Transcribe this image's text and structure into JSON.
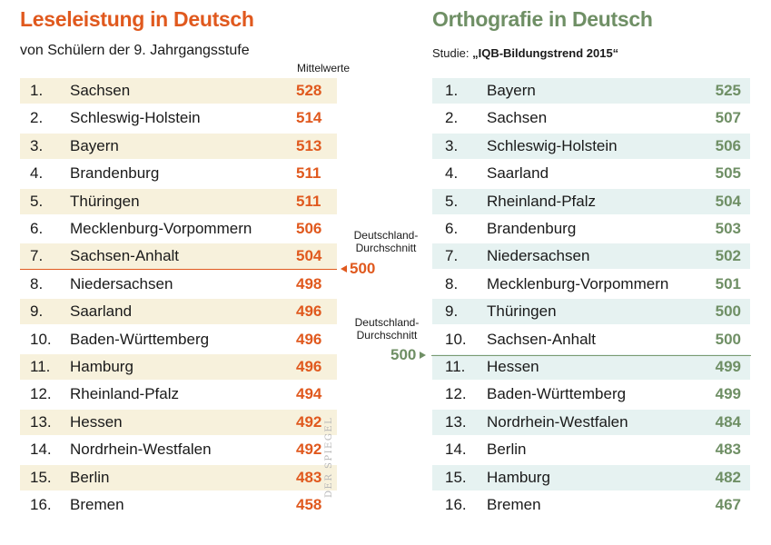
{
  "chart_data": [
    {
      "type": "table",
      "title": "Leseleistung in Deutsch",
      "subtitle": "von Schülern der 9. Jahrgangsstufe",
      "value_label": "Mittelwerte",
      "average_label_line1": "Deutschland-",
      "average_label_line2": "Durchschnitt",
      "average": 500,
      "rows": [
        {
          "rank": "1.",
          "name": "Sachsen",
          "value": 528
        },
        {
          "rank": "2.",
          "name": "Schleswig-Holstein",
          "value": 514
        },
        {
          "rank": "3.",
          "name": "Bayern",
          "value": 513
        },
        {
          "rank": "4.",
          "name": "Brandenburg",
          "value": 511
        },
        {
          "rank": "5.",
          "name": "Thüringen",
          "value": 511
        },
        {
          "rank": "6.",
          "name": "Mecklenburg-Vorpommern",
          "value": 506
        },
        {
          "rank": "7.",
          "name": "Sachsen-Anhalt",
          "value": 504
        },
        {
          "rank": "8.",
          "name": "Niedersachsen",
          "value": 498
        },
        {
          "rank": "9.",
          "name": "Saarland",
          "value": 496
        },
        {
          "rank": "10.",
          "name": "Baden-Württemberg",
          "value": 496
        },
        {
          "rank": "11.",
          "name": "Hamburg",
          "value": 496
        },
        {
          "rank": "12.",
          "name": "Rheinland-Pfalz",
          "value": 494
        },
        {
          "rank": "13.",
          "name": "Hessen",
          "value": 492
        },
        {
          "rank": "14.",
          "name": "Nordrhein-Westfalen",
          "value": 492
        },
        {
          "rank": "15.",
          "name": "Berlin",
          "value": 483
        },
        {
          "rank": "16.",
          "name": "Bremen",
          "value": 458
        }
      ]
    },
    {
      "type": "table",
      "title": "Orthografie in Deutsch",
      "subtitle_prefix": "Studie: ",
      "subtitle_emphasis": "„IQB-Bildungstrend 2015“",
      "average_label_line1": "Deutschland-",
      "average_label_line2": "Durchschnitt",
      "average": 500,
      "rows": [
        {
          "rank": "1.",
          "name": "Bayern",
          "value": 525
        },
        {
          "rank": "2.",
          "name": "Sachsen",
          "value": 507
        },
        {
          "rank": "3.",
          "name": "Schleswig-Holstein",
          "value": 506
        },
        {
          "rank": "4.",
          "name": "Saarland",
          "value": 505
        },
        {
          "rank": "5.",
          "name": "Rheinland-Pfalz",
          "value": 504
        },
        {
          "rank": "6.",
          "name": "Brandenburg",
          "value": 503
        },
        {
          "rank": "7.",
          "name": "Niedersachsen",
          "value": 502
        },
        {
          "rank": "8.",
          "name": "Mecklenburg-Vorpommern",
          "value": 501
        },
        {
          "rank": "9.",
          "name": "Thüringen",
          "value": 500
        },
        {
          "rank": "10.",
          "name": "Sachsen-Anhalt",
          "value": 500
        },
        {
          "rank": "11.",
          "name": "Hessen",
          "value": 499
        },
        {
          "rank": "12.",
          "name": "Baden-Württemberg",
          "value": 499
        },
        {
          "rank": "13.",
          "name": "Nordrhein-Westfalen",
          "value": 484
        },
        {
          "rank": "14.",
          "name": "Berlin",
          "value": 483
        },
        {
          "rank": "15.",
          "name": "Hamburg",
          "value": 482
        },
        {
          "rank": "16.",
          "name": "Bremen",
          "value": 467
        }
      ]
    }
  ],
  "credit": "DER SPIEGEL",
  "colors": {
    "left_accent": "#e0591e",
    "right_accent": "#6f8f65",
    "left_shade": "#f7f1dc",
    "right_shade": "#e6f2f1"
  }
}
